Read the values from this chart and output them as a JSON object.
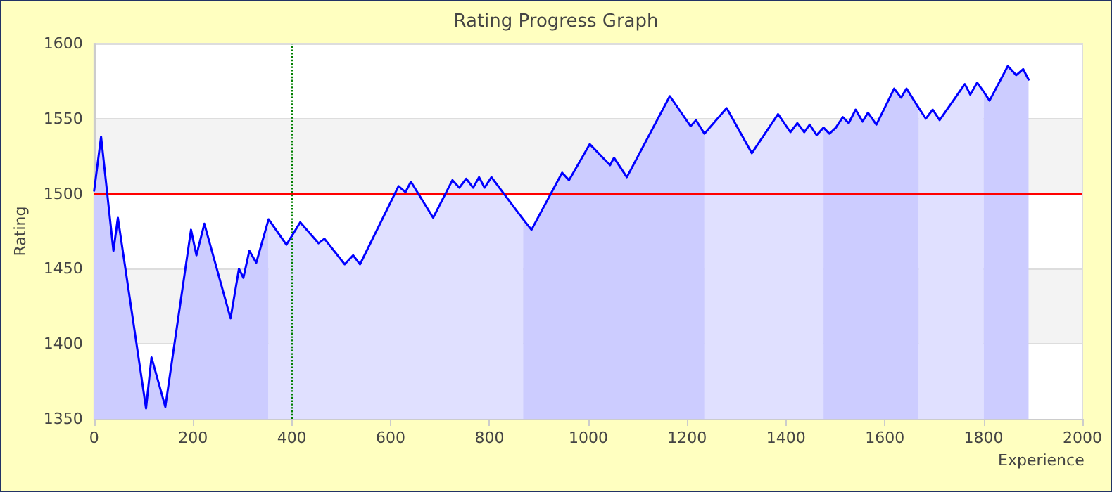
{
  "chart_data": {
    "type": "line",
    "title": "Rating Progress Graph",
    "xlabel": "Experience",
    "ylabel": "Rating",
    "xlim": [
      0,
      2000
    ],
    "xticks": [
      0,
      200,
      400,
      600,
      800,
      1000,
      1200,
      1400,
      1600,
      1800,
      2000
    ],
    "ylim": [
      1350,
      1600
    ],
    "yticks": [
      1350,
      1400,
      1450,
      1500,
      1550,
      1600
    ],
    "grid": "y",
    "marker": "none",
    "line_style": "solid",
    "series": [
      {
        "type": "area",
        "color": "#ccccff",
        "x": [
          0,
          14,
          39,
          48,
          105,
          116,
          144,
          196,
          207,
          223,
          276,
          293,
          302,
          314,
          328,
          353
        ],
        "values": [
          1502,
          1538,
          1462,
          1484,
          1357,
          1391,
          1358,
          1476,
          1459,
          1480,
          1417,
          1450,
          1444,
          1462,
          1454,
          1483
        ]
      },
      {
        "type": "area",
        "color": "#e0e0ff",
        "x": [
          353,
          389,
          417,
          454,
          466,
          507,
          524,
          538,
          616,
          630,
          641,
          686,
          725,
          739,
          753,
          767,
          779,
          790,
          804,
          868
        ],
        "values": [
          1483,
          1466,
          1481,
          1467,
          1470,
          1453,
          1459,
          1453,
          1505,
          1501,
          1508,
          1484,
          1509,
          1504,
          1510,
          1504,
          1511,
          1504,
          1511,
          1483
        ]
      },
      {
        "type": "area",
        "color": "#ccccff",
        "x": [
          868,
          885,
          947,
          961,
          1003,
          1044,
          1052,
          1078,
          1165,
          1207,
          1218,
          1235
        ],
        "values": [
          1483,
          1476,
          1514,
          1509,
          1533,
          1519,
          1524,
          1511,
          1565,
          1545,
          1549,
          1540
        ]
      },
      {
        "type": "area",
        "color": "#e0e0ff",
        "x": [
          1235,
          1280,
          1331,
          1384,
          1409,
          1423,
          1437,
          1448,
          1462,
          1476
        ],
        "values": [
          1540,
          1557,
          1527,
          1553,
          1541,
          1547,
          1541,
          1546,
          1539,
          1544
        ]
      },
      {
        "type": "area",
        "color": "#ccccff",
        "x": [
          1476,
          1488,
          1501,
          1515,
          1527,
          1541,
          1555,
          1566,
          1583,
          1619,
          1633,
          1644,
          1669
        ],
        "values": [
          1544,
          1540,
          1544,
          1551,
          1547,
          1556,
          1548,
          1554,
          1546,
          1570,
          1564,
          1570,
          1557
        ]
      },
      {
        "type": "area",
        "color": "#e0e0ff",
        "x": [
          1669,
          1683,
          1697,
          1711,
          1762,
          1773,
          1787,
          1800
        ],
        "values": [
          1557,
          1550,
          1556,
          1549,
          1573,
          1566,
          1574,
          1568
        ]
      },
      {
        "type": "area",
        "color": "#ccccff",
        "x": [
          1800,
          1812,
          1849,
          1866,
          1880,
          1891
        ],
        "values": [
          1568,
          1562,
          1585,
          1579,
          1583,
          1576
        ]
      },
      {
        "color": "#0000ff",
        "x": [
          0,
          14,
          39,
          48,
          105,
          116,
          144,
          196,
          207,
          223,
          276,
          293,
          302,
          314,
          328,
          353,
          389,
          417,
          454,
          466,
          507,
          524,
          538,
          616,
          630,
          641,
          686,
          725,
          739,
          753,
          767,
          779,
          790,
          804,
          868,
          885,
          947,
          961,
          1003,
          1044,
          1052,
          1078,
          1165,
          1207,
          1218,
          1235,
          1280,
          1331,
          1384,
          1409,
          1423,
          1437,
          1448,
          1462,
          1476,
          1488,
          1501,
          1515,
          1527,
          1541,
          1555,
          1566,
          1583,
          1619,
          1633,
          1644,
          1669,
          1683,
          1697,
          1711,
          1762,
          1773,
          1787,
          1800,
          1812,
          1849,
          1866,
          1880,
          1891
        ],
        "values": [
          1502,
          1538,
          1462,
          1484,
          1357,
          1391,
          1358,
          1476,
          1459,
          1480,
          1417,
          1450,
          1444,
          1462,
          1454,
          1483,
          1466,
          1481,
          1467,
          1470,
          1453,
          1459,
          1453,
          1505,
          1501,
          1508,
          1484,
          1509,
          1504,
          1510,
          1504,
          1511,
          1504,
          1511,
          1483,
          1476,
          1514,
          1509,
          1533,
          1519,
          1524,
          1511,
          1565,
          1545,
          1549,
          1540,
          1557,
          1527,
          1553,
          1541,
          1547,
          1541,
          1546,
          1539,
          1544,
          1540,
          1544,
          1551,
          1547,
          1556,
          1548,
          1554,
          1546,
          1570,
          1564,
          1570,
          1557,
          1550,
          1556,
          1549,
          1573,
          1566,
          1574,
          1568,
          1562,
          1585,
          1579,
          1583,
          1576
        ]
      }
    ],
    "ref_lines": [
      {
        "axis": "y",
        "value": 1500,
        "color": "#ff0000",
        "line_style": "solid"
      },
      {
        "axis": "x",
        "value": 400,
        "color": "#008000",
        "line_style": "dotted"
      }
    ]
  }
}
